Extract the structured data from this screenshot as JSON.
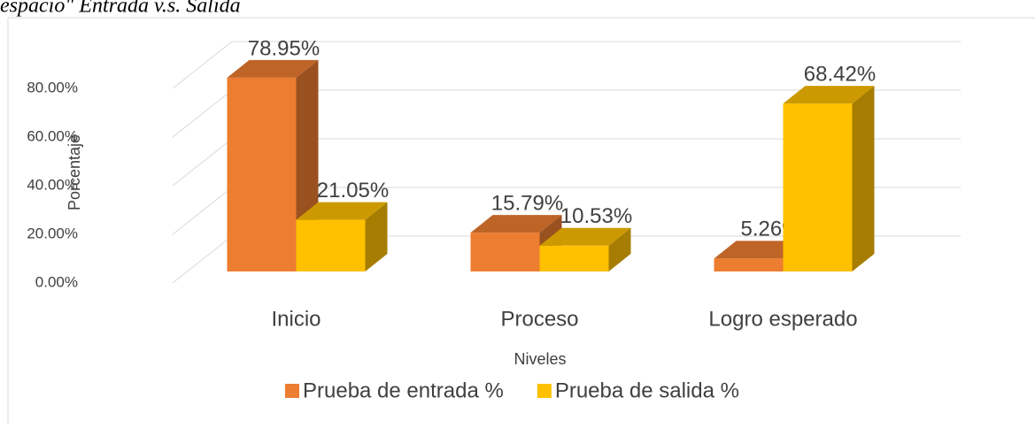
{
  "chart_data": {
    "type": "bar3d",
    "title": "espacio\" Entrada v.s. Salida",
    "categories": [
      "Inicio",
      "Proceso",
      "Logro esperado"
    ],
    "series": [
      {
        "name": "Prueba de entrada %",
        "color": "#ED7D31",
        "values": [
          78.95,
          15.79,
          5.26
        ],
        "value_labels": [
          "78.95%",
          "15.79%",
          "5.26%"
        ]
      },
      {
        "name": "Prueba de salida %",
        "color": "#FFC000",
        "values": [
          21.05,
          10.53,
          68.42
        ],
        "value_labels": [
          "21.05%",
          "10.53%",
          "68.42%"
        ]
      }
    ],
    "x_label": "Niveles",
    "y_label": "Porcentaje",
    "ylim": [
      0,
      80
    ],
    "yticks": [
      {
        "value": 0,
        "label": "0.00%"
      },
      {
        "value": 20,
        "label": "20.00%"
      },
      {
        "value": 40,
        "label": "40.00%"
      },
      {
        "value": 60,
        "label": "60.00%"
      },
      {
        "value": 80,
        "label": "80.00%"
      }
    ],
    "grid": true,
    "legend": "bottom"
  }
}
